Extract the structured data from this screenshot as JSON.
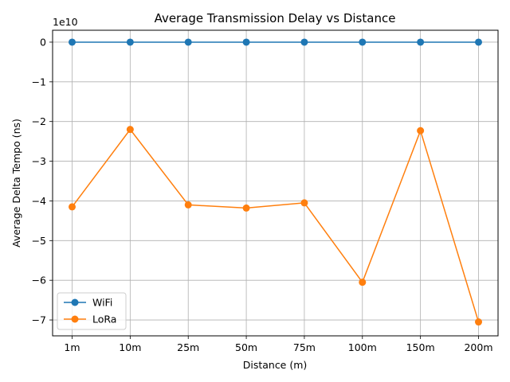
{
  "chart_data": {
    "type": "line",
    "title": "Average Transmission Delay vs Distance",
    "xlabel": "Distance (m)",
    "ylabel": "Average Delta Tempo (ns)",
    "y_offset_label": "1e10",
    "categories": [
      "1m",
      "10m",
      "25m",
      "50m",
      "75m",
      "100m",
      "150m",
      "200m"
    ],
    "y_ticks": [
      0,
      -1,
      -2,
      -3,
      -4,
      -5,
      -6,
      -7
    ],
    "ylim": [
      -7.4,
      0.3
    ],
    "y_scale_note": "values in units of 1e10 ns",
    "grid": true,
    "legend_position": "lower-left",
    "series": [
      {
        "name": "WiFi",
        "color": "#1f77b4",
        "values": [
          0,
          0,
          0,
          0,
          0,
          0,
          0,
          0
        ]
      },
      {
        "name": "LoRa",
        "color": "#ff7f0e",
        "values": [
          -4.15,
          -2.2,
          -4.1,
          -4.18,
          -4.05,
          -6.05,
          -2.23,
          -7.05
        ]
      }
    ]
  }
}
